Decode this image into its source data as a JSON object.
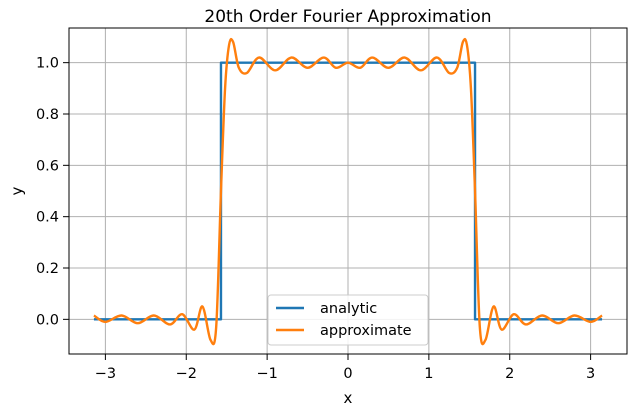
{
  "chart_data": {
    "type": "line",
    "title": "20th Order Fourier Approximation",
    "xlabel": "x",
    "ylabel": "y",
    "xlim": [
      -3.45,
      3.45
    ],
    "ylim": [
      -0.135,
      1.135
    ],
    "xticks": [
      -3,
      -2,
      -1,
      0,
      1,
      2,
      3
    ],
    "xtick_labels": [
      "−3",
      "−2",
      "−1",
      "0",
      "1",
      "2",
      "3"
    ],
    "yticks": [
      0.0,
      0.2,
      0.4,
      0.6,
      0.8,
      1.0
    ],
    "ytick_labels": [
      "0.0",
      "0.2",
      "0.4",
      "0.6",
      "0.8",
      "1.0"
    ],
    "grid": true,
    "legend_position": "lower center",
    "series": [
      {
        "name": "analytic",
        "color": "#1f77b4",
        "x": [
          -3.1416,
          -1.5708,
          -1.5708,
          1.5708,
          1.5708,
          3.1416
        ],
        "y": [
          0.0,
          0.0,
          1.0,
          1.0,
          0.0,
          0.0
        ]
      },
      {
        "name": "approximate",
        "color": "#ff7f0e",
        "x": [
          -3.1416,
          -3.0,
          -2.8,
          -2.6,
          -2.4,
          -2.2,
          -2.05,
          -1.9,
          -1.8,
          -1.7,
          -1.63,
          -1.5708,
          -1.52,
          -1.47,
          -1.42,
          -1.35,
          -1.25,
          -1.1,
          -0.9,
          -0.7,
          -0.5,
          -0.3,
          -0.15,
          0.0,
          0.15,
          0.3,
          0.5,
          0.7,
          0.9,
          1.1,
          1.25,
          1.35,
          1.42,
          1.47,
          1.52,
          1.5708,
          1.63,
          1.7,
          1.8,
          1.9,
          2.05,
          2.2,
          2.4,
          2.6,
          2.8,
          3.0,
          3.1416
        ],
        "y": [
          0.015,
          -0.01,
          0.015,
          -0.015,
          0.015,
          -0.02,
          0.02,
          -0.04,
          0.05,
          -0.08,
          -0.03,
          0.5,
          0.9,
          1.07,
          1.08,
          0.98,
          0.96,
          1.02,
          0.97,
          1.02,
          0.98,
          1.02,
          0.98,
          1.0,
          0.98,
          1.02,
          0.98,
          1.02,
          0.97,
          1.02,
          0.96,
          0.98,
          1.08,
          1.07,
          0.9,
          0.5,
          -0.03,
          -0.08,
          0.05,
          -0.04,
          0.02,
          -0.02,
          0.015,
          -0.015,
          0.015,
          -0.01,
          0.015
        ]
      }
    ]
  }
}
